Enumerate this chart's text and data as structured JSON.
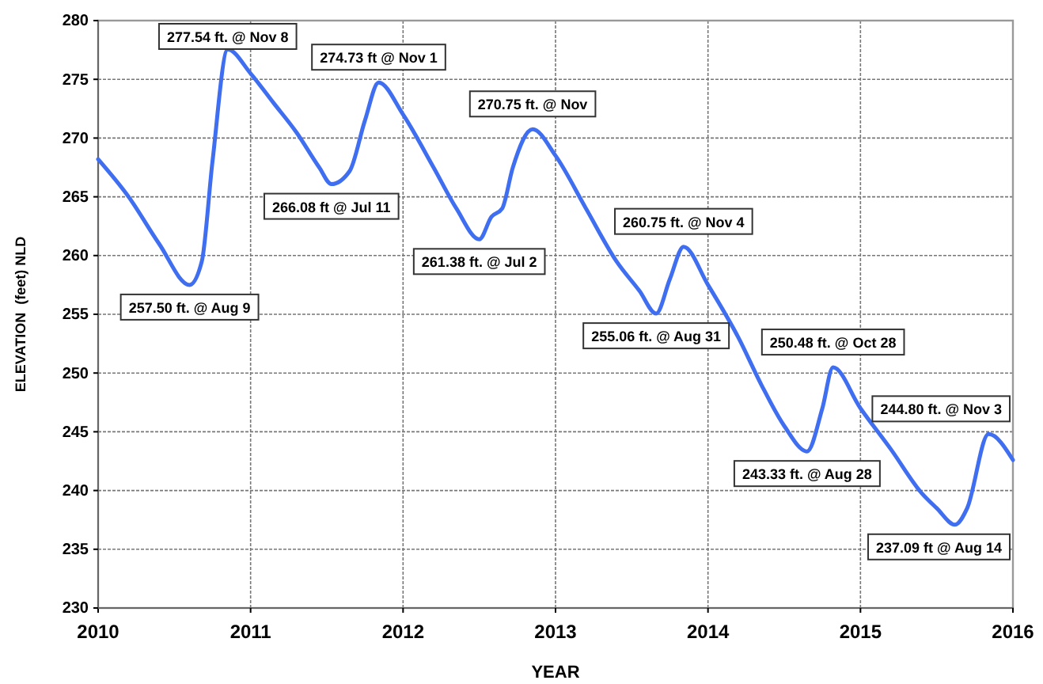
{
  "chart_data": {
    "type": "line",
    "xlabel": "YEAR",
    "ylabel": "ELEVATION  (feet) NLD",
    "xlim": [
      2010,
      2016
    ],
    "xticks": [
      2010,
      2011,
      2012,
      2013,
      2014,
      2015,
      2016
    ],
    "ylim": [
      230,
      280
    ],
    "yticks": [
      230,
      235,
      240,
      245,
      250,
      255,
      260,
      265,
      270,
      275,
      280
    ],
    "grid": true,
    "marker": "none",
    "line_style": "solid",
    "series": [
      {
        "color": "#3f6ef0",
        "x": [
          2010.0,
          2010.2,
          2010.4,
          2010.6,
          2010.68,
          2010.75,
          2010.85,
          2011.0,
          2011.15,
          2011.3,
          2011.45,
          2011.53,
          2011.65,
          2011.75,
          2011.84,
          2012.0,
          2012.2,
          2012.35,
          2012.5,
          2012.58,
          2012.65,
          2012.72,
          2012.85,
          2013.0,
          2013.2,
          2013.4,
          2013.55,
          2013.66,
          2013.75,
          2013.84,
          2014.0,
          2014.2,
          2014.35,
          2014.5,
          2014.65,
          2014.75,
          2014.82,
          2015.0,
          2015.2,
          2015.4,
          2015.5,
          2015.62,
          2015.7,
          2015.84,
          2016.0
        ],
        "values": [
          268.2,
          265,
          261,
          257.5,
          259.5,
          268,
          277.54,
          275.5,
          273,
          270.5,
          267.5,
          266.08,
          267.2,
          271.5,
          274.73,
          272,
          267.5,
          264,
          261.38,
          263.3,
          264,
          267.5,
          270.75,
          268.5,
          264,
          259.5,
          257,
          255.06,
          258,
          260.75,
          257.5,
          253,
          249,
          245.5,
          243.33,
          247,
          250.48,
          247,
          243.5,
          239.8,
          238.5,
          237.09,
          238.5,
          244.8,
          242.6
        ]
      }
    ],
    "annotations": [
      {
        "text": "257.50 ft. @ Aug 9",
        "x": 2010.6,
        "y": 257.5
      },
      {
        "text": "277.54 ft. @ Nov 8",
        "x": 2010.85,
        "y": 277.54
      },
      {
        "text": "266.08 ft @ Jul 11",
        "x": 2011.53,
        "y": 266.08
      },
      {
        "text": "274.73 ft @ Nov 1",
        "x": 2011.84,
        "y": 274.73
      },
      {
        "text": "261.38 ft. @ Jul 2",
        "x": 2012.5,
        "y": 261.38
      },
      {
        "text": "270.75 ft. @ Nov",
        "x": 2012.85,
        "y": 270.75
      },
      {
        "text": "255.06 ft. @ Aug 31",
        "x": 2013.66,
        "y": 255.06
      },
      {
        "text": "260.75 ft. @ Nov 4",
        "x": 2013.84,
        "y": 260.75
      },
      {
        "text": "243.33 ft. @ Aug 28",
        "x": 2014.65,
        "y": 243.33
      },
      {
        "text": "250.48 ft. @ Oct 28",
        "x": 2014.82,
        "y": 250.48
      },
      {
        "text": "237.09 ft @ Aug 14",
        "x": 2015.62,
        "y": 237.09
      },
      {
        "text": "244.80 ft. @ Nov 3",
        "x": 2015.84,
        "y": 244.8
      }
    ]
  }
}
